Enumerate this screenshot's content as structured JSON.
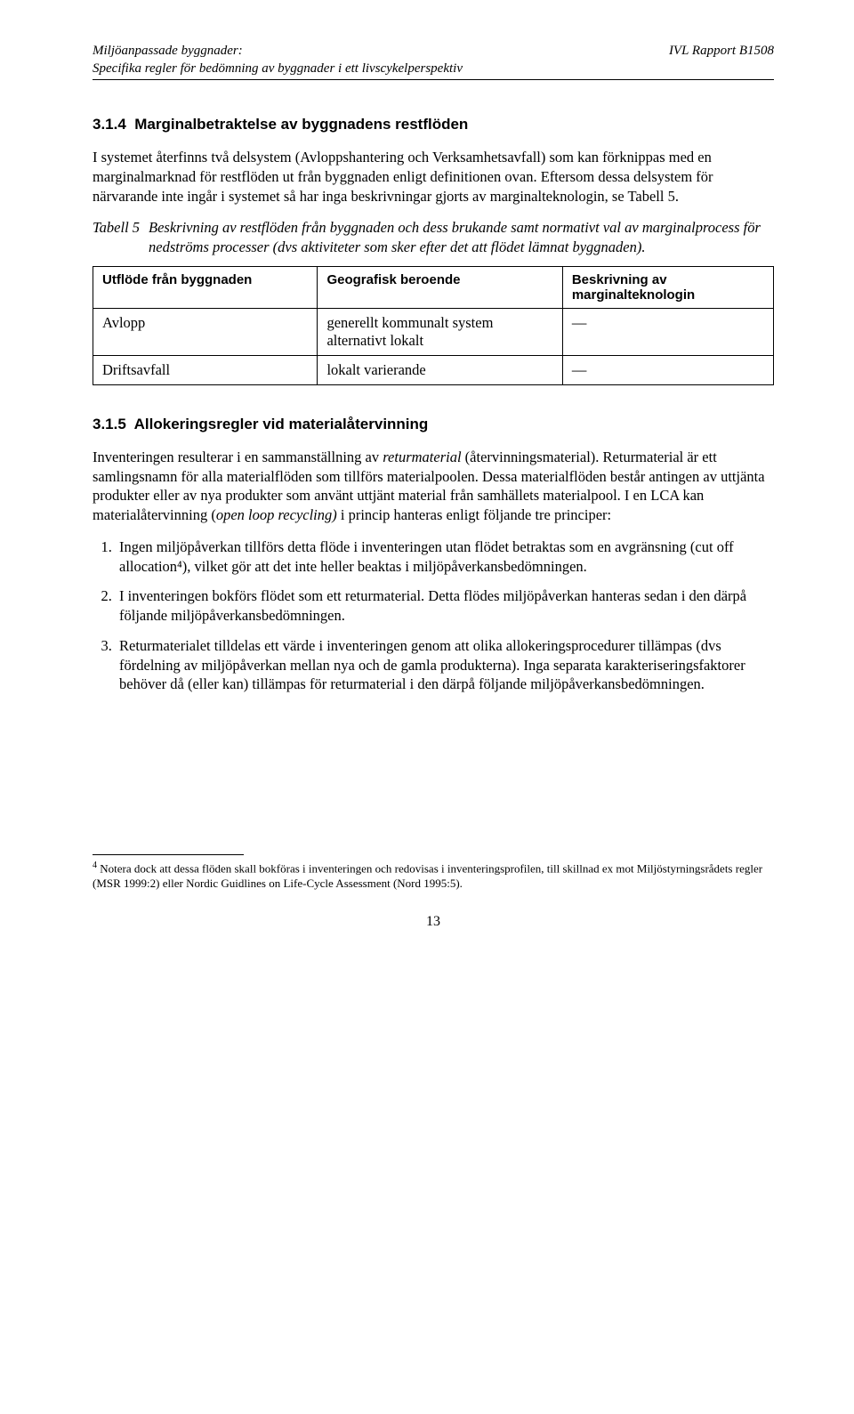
{
  "header": {
    "left_line1": "Miljöanpassade byggnader:",
    "left_line2": "Specifika regler för bedömning av byggnader i ett livscykelperspektiv",
    "right": "IVL Rapport  B1508"
  },
  "section314": {
    "number": "3.1.4",
    "title": "Marginalbetraktelse av byggnadens restflöden",
    "para1": "I systemet återfinns två delsystem (Avloppshantering och Verksamhetsavfall) som kan förknippas med en marginalmarknad för restflöden ut från byggnaden enligt definitionen ovan. Eftersom dessa delsystem för närvarande inte ingår i systemet så har inga beskrivningar gjorts  av marginalteknologin, se Tabell 5."
  },
  "tabell5": {
    "label": "Tabell 5",
    "caption": "Beskrivning av restflöden från byggnaden och dess brukande samt normativt val av marginalprocess för nedströms processer (dvs aktiviteter som sker efter det att flödet lämnat byggnaden).",
    "headers": [
      "Utflöde från byggnaden",
      "Geografisk beroende",
      "Beskrivning av marginalteknologin"
    ],
    "rows": [
      {
        "c1": "Avlopp",
        "c2": "generellt kommunalt system alternativt lokalt",
        "c3": "—"
      },
      {
        "c1": "Driftsavfall",
        "c2": "lokalt varierande",
        "c3": "—"
      }
    ],
    "col_widths": [
      "33%",
      "36%",
      "31%"
    ]
  },
  "section315": {
    "number": "3.1.5",
    "title": "Allokeringsregler vid materialåtervinning",
    "para1_a": "Inventeringen resulterar i en sammanställning av ",
    "para1_em": "returmaterial",
    "para1_b": " (återvinningsmaterial). Returmaterial är ett samlingsnamn för alla materialflöden som tillförs materialpoolen. Dessa materialflöden består antingen av uttjänta produkter eller av nya produkter som använt uttjänt material från samhällets materialpool. I en LCA kan materialåtervinning (",
    "para1_em2": "open loop recycling)",
    "para1_c": " i princip hanteras enligt följande tre principer:",
    "principles": [
      "Ingen miljöpåverkan tillförs detta flöde i inventeringen utan flödet betraktas som en avgränsning (cut off allocation⁴), vilket gör att det inte heller beaktas i miljöpåverkansbedömningen.",
      "I inventeringen bokförs flödet som ett returmaterial. Detta flödes miljöpåverkan hanteras sedan i den därpå följande miljöpåverkansbedömningen.",
      "Returmaterialet tilldelas ett värde i inventeringen genom att olika allokeringsprocedurer tillämpas (dvs fördelning av miljöpåverkan mellan nya och de gamla produkterna). Inga separata karakteriseringsfaktorer behöver då (eller kan) tillämpas för returmaterial i den därpå följande miljöpåverkansbedömningen."
    ]
  },
  "footnote": {
    "num": "4",
    "text": " Notera dock att dessa flöden skall bokföras i inventeringen och redovisas i inventeringsprofilen, till skillnad ex mot Miljöstyrningsrådets regler (MSR 1999:2) eller Nordic Guidlines on Life-Cycle Assessment (Nord 1995:5)."
  },
  "page_number": "13",
  "colors": {
    "text": "#000000",
    "background": "#ffffff",
    "rule": "#000000"
  }
}
